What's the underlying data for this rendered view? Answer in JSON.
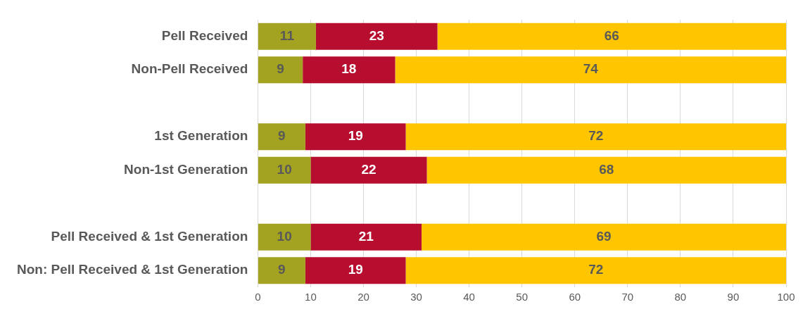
{
  "chart_data": {
    "type": "bar",
    "orientation": "horizontal",
    "stacked": true,
    "grid": "x",
    "legend": false,
    "categories": [
      "Pell Received",
      "Non-Pell Received",
      null,
      "1st Generation",
      "Non-1st Generation",
      null,
      "Pell Received & 1st Generation",
      "Non: Pell Received & 1st Generation"
    ],
    "series": [
      {
        "color": "#a3a321",
        "values": [
          11,
          8.5,
          null,
          9,
          10,
          null,
          10,
          9
        ],
        "value_labels": [
          "11",
          "9",
          null,
          "9",
          "10",
          null,
          "10",
          "9"
        ]
      },
      {
        "color": "#b70d2f",
        "values": [
          23,
          17.5,
          null,
          19,
          22,
          null,
          21,
          19
        ],
        "value_labels": [
          "23",
          "18",
          null,
          "19",
          "22",
          null,
          "21",
          "19"
        ]
      },
      {
        "color": "#ffc600",
        "values": [
          66,
          74,
          null,
          72,
          68,
          null,
          69,
          72
        ],
        "value_labels": [
          "66",
          "74",
          null,
          "72",
          "68",
          null,
          "69",
          "72"
        ]
      }
    ],
    "xlim": [
      0,
      100
    ],
    "xticks": [
      0,
      10,
      20,
      30,
      40,
      50,
      60,
      70,
      80,
      90,
      100
    ]
  }
}
